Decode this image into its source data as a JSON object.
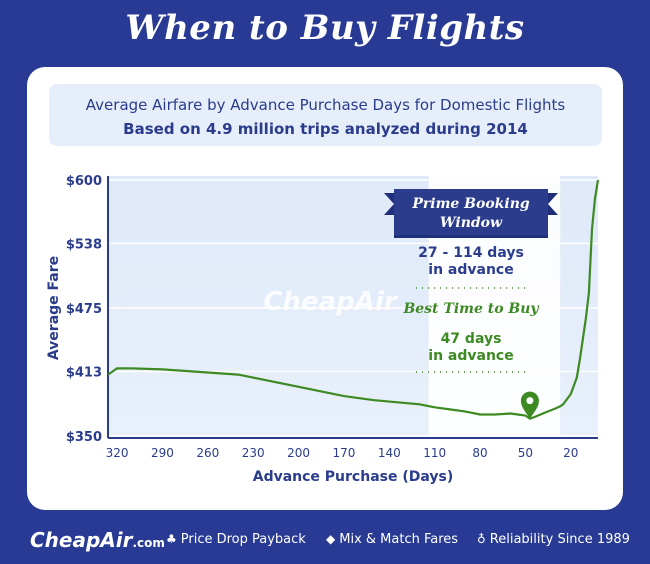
{
  "header": {
    "title": "When to Buy Flights"
  },
  "subtitle": {
    "line1": "Average Airfare by Advance Purchase Days for Domestic Flights",
    "line2": "Based on 4.9 million trips analyzed during 2014"
  },
  "annotation": {
    "banner_line1": "Prime Booking",
    "banner_line2": "Window",
    "window_range": "27 - 114 days",
    "window_suffix": "in advance",
    "best_title": "Best Time to Buy",
    "best_days": "47 days",
    "best_suffix": "in advance"
  },
  "watermark": "CheapAir",
  "footer": {
    "logo": "CheapAir",
    "logo_suffix": ".com",
    "features": [
      {
        "icon": "clover-icon",
        "label": "Price Drop Payback"
      },
      {
        "icon": "tag-icon",
        "label": "Mix & Match Fares"
      },
      {
        "icon": "ribbon-icon",
        "label": "Reliability Since 1989"
      }
    ]
  },
  "colors": {
    "background": "#283a94",
    "line": "#3d8a23",
    "highlight": "#ffffff",
    "text": "#2b3c8d"
  },
  "chart_data": {
    "type": "line",
    "title": "Average Airfare by Advance Purchase Days for Domestic Flights",
    "xlabel": "Advance Purchase (Days)",
    "ylabel": "Average Fare",
    "x_reversed": true,
    "xlim": [
      326,
      2
    ],
    "ylim": [
      350,
      600
    ],
    "x_ticks": [
      320,
      290,
      260,
      230,
      200,
      170,
      140,
      110,
      80,
      50,
      20
    ],
    "y_ticks": [
      {
        "value": 350,
        "label": "$350"
      },
      {
        "value": 413,
        "label": "$413"
      },
      {
        "value": 475,
        "label": "$475"
      },
      {
        "value": 538,
        "label": "$538"
      },
      {
        "value": 600,
        "label": "$600"
      }
    ],
    "grid": true,
    "highlight_range": [
      114,
      27
    ],
    "best_point": {
      "x": 47,
      "y": 367
    },
    "series": [
      {
        "x": [
          326,
          320,
          310,
          290,
          260,
          240,
          230,
          200,
          170,
          150,
          120,
          110,
          100,
          90,
          80,
          70,
          60,
          55,
          50,
          47,
          45,
          40,
          35,
          30,
          27,
          25,
          20,
          16,
          14,
          12,
          10,
          8,
          6,
          4,
          2
        ],
        "y": [
          410,
          416,
          416,
          415,
          412,
          410,
          407,
          398,
          389,
          385,
          381,
          378,
          376,
          374,
          371,
          371,
          372,
          371,
          370,
          367,
          368,
          371,
          374,
          377,
          379,
          381,
          391,
          407,
          425,
          445,
          465,
          490,
          552,
          582,
          600
        ]
      }
    ]
  }
}
